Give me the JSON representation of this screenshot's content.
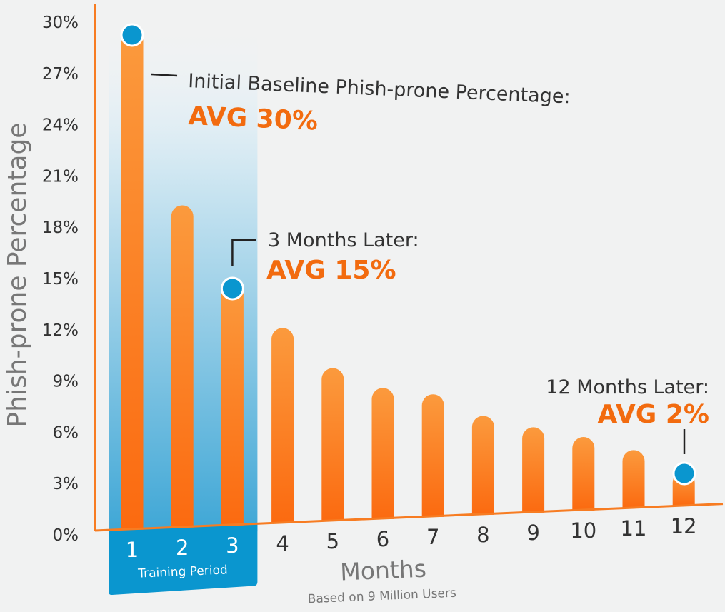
{
  "chart_data": {
    "type": "bar",
    "ylabel": "Phish-prone Percentage",
    "xlabel": "Months",
    "x_sublabel": "Based on 9 Million Users",
    "ylim": [
      0,
      30
    ],
    "y_ticks": [
      "0%",
      "3%",
      "6%",
      "9%",
      "12%",
      "15%",
      "18%",
      "21%",
      "24%",
      "27%",
      "30%"
    ],
    "categories": [
      "1",
      "2",
      "3",
      "4",
      "5",
      "6",
      "7",
      "8",
      "9",
      "10",
      "11",
      "12"
    ],
    "values": [
      29.5,
      19.0,
      14.5,
      11.5,
      9.0,
      7.7,
      7.2,
      5.8,
      5.0,
      4.3,
      3.4,
      2.0
    ],
    "highlight_band": {
      "label": "Training Period",
      "categories": [
        "1",
        "2",
        "3"
      ]
    },
    "annotations": [
      {
        "category": "1",
        "line1": "Initial Baseline Phish-prone Percentage:",
        "line2": "AVG 30%"
      },
      {
        "category": "3",
        "line1": "3 Months Later:",
        "line2": "AVG 15%"
      },
      {
        "category": "12",
        "line1": "12 Months Later:",
        "line2": "AVG 2%"
      }
    ],
    "grid": false,
    "colors": {
      "bar": "#fb7a1e",
      "bar_light": "#fb9a3d",
      "marker": "#0a96cf",
      "band_top": "#e7f1f6",
      "band_bottom": "#3fa7d6",
      "axis": "#f77c22",
      "text": "#333333",
      "label_gray": "#777777",
      "accent_text": "#f26b0f"
    }
  }
}
